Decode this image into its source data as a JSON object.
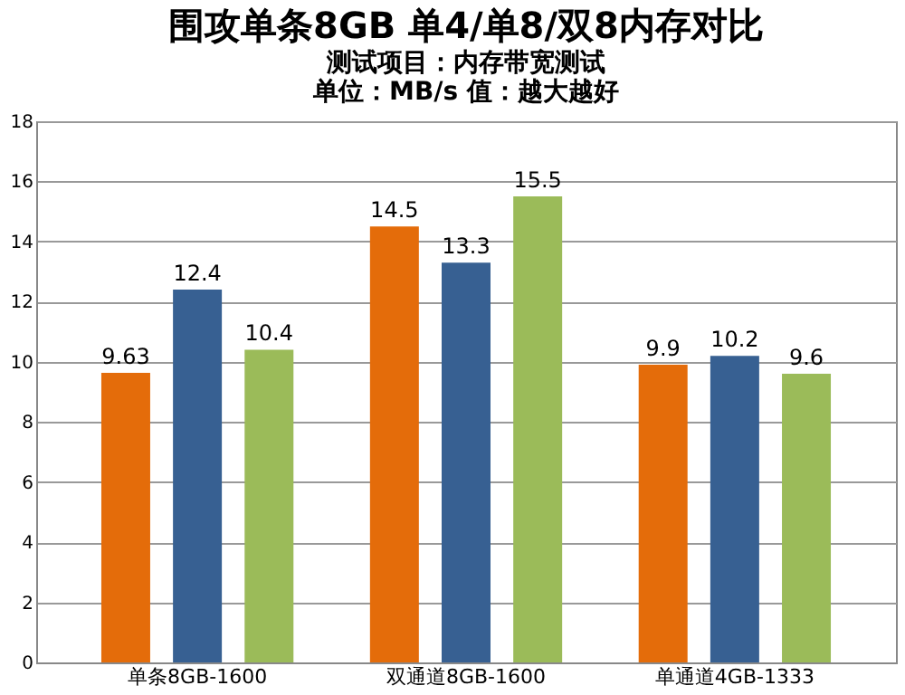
{
  "chart_data": {
    "type": "bar",
    "title": "围攻单条8GB 单4/单8/双8内存对比",
    "subtitle": "测试项目：内存带宽测试",
    "annotations": [
      "单位：MB/s    值：越大越好"
    ],
    "categories": [
      "单条8GB-1600",
      "双通道8GB-1600",
      "单通道4GB-1333"
    ],
    "series": [
      {
        "color": "#e46c0a",
        "values": [
          9.63,
          14.5,
          9.9
        ]
      },
      {
        "color": "#376092",
        "values": [
          12.4,
          13.3,
          10.2
        ]
      },
      {
        "color": "#9bbb59",
        "values": [
          10.4,
          15.5,
          9.6
        ]
      }
    ],
    "ylim": [
      0,
      18
    ],
    "yticks": [
      0,
      2,
      4,
      6,
      8,
      10,
      12,
      14,
      16,
      18
    ],
    "grid": "y",
    "data_labels": true
  }
}
